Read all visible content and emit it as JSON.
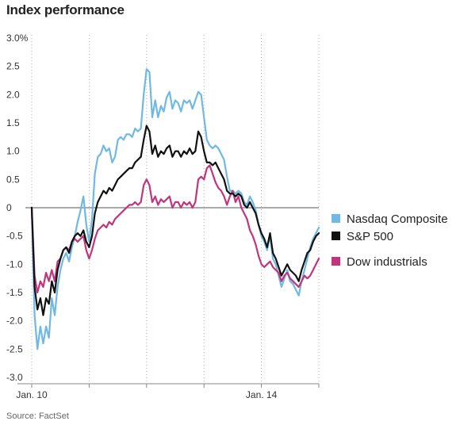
{
  "title": "Index performance",
  "source": "Source: FactSet",
  "chart_data": {
    "type": "line",
    "title": "Index performance",
    "ylim": [
      -3.0,
      3.0
    ],
    "yticks": [
      3.0,
      2.5,
      2.0,
      1.5,
      1.0,
      0.5,
      0,
      -0.5,
      -1.0,
      -1.5,
      -2.0,
      -2.5,
      -3.0
    ],
    "ytick_labels": [
      "3.0%",
      "2.5",
      "2.0",
      "1.5",
      "1.0",
      "0.5",
      "0",
      "-0.5",
      "-1.0",
      "-1.5",
      "-2.0",
      "-2.5",
      "-3.0"
    ],
    "xlim": [
      0,
      100
    ],
    "xticks": [
      0,
      20,
      40,
      60,
      80,
      100
    ],
    "xtick_labels": [
      {
        "x": 0,
        "label": "Jan. 10"
      },
      {
        "x": 80,
        "label": "Jan. 14"
      }
    ],
    "grid": "vertical dotted",
    "legend_position": "right",
    "series": [
      {
        "name": "Nasdaq Composite",
        "color": "#6fb9e3",
        "x": [
          0,
          1,
          2,
          3,
          4,
          5,
          6,
          7,
          8,
          9,
          10,
          11,
          12,
          13,
          14,
          15,
          16,
          17,
          18,
          19,
          20,
          21,
          22,
          23,
          24,
          25,
          26,
          27,
          28,
          29,
          30,
          31,
          32,
          33,
          34,
          35,
          36,
          37,
          38,
          39,
          40,
          41,
          42,
          43,
          44,
          45,
          46,
          47,
          48,
          49,
          50,
          51,
          52,
          53,
          54,
          55,
          56,
          57,
          58,
          59,
          60,
          61,
          62,
          63,
          64,
          65,
          66,
          67,
          68,
          69,
          70,
          71,
          72,
          73,
          74,
          75,
          76,
          77,
          78,
          79,
          80,
          81,
          82,
          83,
          84,
          85,
          86,
          87,
          88,
          89,
          90,
          91,
          92,
          93,
          94,
          95,
          96,
          97,
          98,
          99,
          100
        ],
        "y": [
          0,
          -1.9,
          -2.5,
          -2.1,
          -2.4,
          -2.1,
          -2.3,
          -1.6,
          -1.9,
          -1.4,
          -1.1,
          -0.9,
          -0.8,
          -0.95,
          -0.7,
          -0.5,
          -0.25,
          -0.05,
          0.2,
          -0.3,
          -0.6,
          -0.2,
          0.6,
          0.9,
          0.95,
          1.1,
          1.0,
          1.05,
          0.8,
          0.9,
          1.2,
          1.25,
          1.2,
          1.3,
          1.3,
          1.25,
          1.4,
          1.35,
          1.4,
          2.0,
          2.45,
          2.4,
          1.6,
          1.9,
          1.6,
          1.8,
          1.7,
          1.95,
          2.05,
          1.75,
          1.9,
          1.85,
          1.7,
          1.9,
          1.85,
          1.9,
          1.75,
          1.9,
          2.05,
          2.0,
          1.6,
          1.2,
          1.1,
          1.05,
          1.1,
          1.05,
          0.95,
          0.85,
          0.55,
          0.3,
          0.3,
          0.25,
          0.3,
          0.25,
          0.1,
          0.05,
          0.2,
          0.1,
          -0.05,
          -0.3,
          -0.5,
          -0.6,
          -0.75,
          -0.5,
          -0.9,
          -1.0,
          -1.2,
          -1.4,
          -1.25,
          -1.1,
          -1.3,
          -1.35,
          -1.45,
          -1.55,
          -1.3,
          -1.1,
          -0.9,
          -0.7,
          -0.55,
          -0.45,
          -0.35
        ]
      },
      {
        "name": "S&P 500",
        "color": "#111111",
        "x": [
          0,
          1,
          2,
          3,
          4,
          5,
          6,
          7,
          8,
          9,
          10,
          11,
          12,
          13,
          14,
          15,
          16,
          17,
          18,
          19,
          20,
          21,
          22,
          23,
          24,
          25,
          26,
          27,
          28,
          29,
          30,
          31,
          32,
          33,
          34,
          35,
          36,
          37,
          38,
          39,
          40,
          41,
          42,
          43,
          44,
          45,
          46,
          47,
          48,
          49,
          50,
          51,
          52,
          53,
          54,
          55,
          56,
          57,
          58,
          59,
          60,
          61,
          62,
          63,
          64,
          65,
          66,
          67,
          68,
          69,
          70,
          71,
          72,
          73,
          74,
          75,
          76,
          77,
          78,
          79,
          80,
          81,
          82,
          83,
          84,
          85,
          86,
          87,
          88,
          89,
          90,
          91,
          92,
          93,
          94,
          95,
          96,
          97,
          98,
          99,
          100
        ],
        "y": [
          0,
          -1.4,
          -1.8,
          -1.6,
          -1.9,
          -1.6,
          -1.7,
          -1.3,
          -1.5,
          -1.1,
          -0.9,
          -0.75,
          -0.7,
          -0.8,
          -0.6,
          -0.5,
          -0.45,
          -0.5,
          -0.4,
          -0.6,
          -0.7,
          -0.5,
          -0.1,
          0.1,
          0.2,
          0.3,
          0.25,
          0.35,
          0.3,
          0.4,
          0.5,
          0.55,
          0.6,
          0.65,
          0.7,
          0.7,
          0.8,
          0.85,
          0.9,
          1.2,
          1.45,
          1.35,
          0.95,
          1.1,
          0.9,
          1.0,
          0.95,
          1.05,
          1.1,
          0.9,
          1.0,
          1.0,
          0.9,
          1.0,
          0.95,
          1.05,
          0.95,
          1.0,
          1.35,
          1.25,
          1.0,
          0.8,
          0.8,
          0.75,
          0.8,
          0.7,
          0.6,
          0.5,
          0.3,
          0.25,
          0.25,
          0.2,
          0.25,
          0.2,
          0.05,
          0.0,
          0.1,
          0.0,
          -0.1,
          -0.3,
          -0.45,
          -0.55,
          -0.7,
          -0.45,
          -0.8,
          -0.9,
          -1.05,
          -1.2,
          -1.1,
          -1.0,
          -1.1,
          -1.15,
          -1.2,
          -1.3,
          -1.1,
          -0.95,
          -0.8,
          -0.75,
          -0.6,
          -0.5,
          -0.45
        ]
      },
      {
        "name": "Dow industrials",
        "color": "#c2347c",
        "x": [
          0,
          1,
          2,
          3,
          4,
          5,
          6,
          7,
          8,
          9,
          10,
          11,
          12,
          13,
          14,
          15,
          16,
          17,
          18,
          19,
          20,
          21,
          22,
          23,
          24,
          25,
          26,
          27,
          28,
          29,
          30,
          31,
          32,
          33,
          34,
          35,
          36,
          37,
          38,
          39,
          40,
          41,
          42,
          43,
          44,
          45,
          46,
          47,
          48,
          49,
          50,
          51,
          52,
          53,
          54,
          55,
          56,
          57,
          58,
          59,
          60,
          61,
          62,
          63,
          64,
          65,
          66,
          67,
          68,
          69,
          70,
          71,
          72,
          73,
          74,
          75,
          76,
          77,
          78,
          79,
          80,
          81,
          82,
          83,
          84,
          85,
          86,
          87,
          88,
          89,
          90,
          91,
          92,
          93,
          94,
          95,
          96,
          97,
          98,
          99,
          100
        ],
        "y": [
          0,
          -1.2,
          -1.5,
          -1.3,
          -1.4,
          -1.15,
          -1.3,
          -1.1,
          -1.3,
          -0.95,
          -0.9,
          -0.75,
          -0.7,
          -0.75,
          -0.6,
          -0.55,
          -0.6,
          -0.55,
          -0.5,
          -0.75,
          -0.9,
          -0.75,
          -0.55,
          -0.4,
          -0.35,
          -0.3,
          -0.35,
          -0.25,
          -0.3,
          -0.2,
          -0.15,
          -0.1,
          -0.05,
          0.0,
          0.05,
          0.05,
          0.1,
          0.05,
          0.1,
          0.4,
          0.5,
          0.4,
          0.1,
          0.2,
          0.05,
          0.15,
          0.1,
          0.15,
          0.2,
          0.0,
          0.1,
          0.1,
          0.0,
          0.1,
          0.05,
          0.1,
          0.0,
          0.1,
          0.5,
          0.55,
          0.5,
          0.7,
          0.75,
          0.6,
          0.45,
          0.35,
          0.3,
          0.2,
          0.05,
          0.2,
          0.3,
          0.1,
          0.2,
          0.0,
          -0.1,
          -0.2,
          -0.4,
          -0.5,
          -0.65,
          -0.85,
          -1.0,
          -1.05,
          -1.0,
          -0.95,
          -1.05,
          -1.1,
          -1.15,
          -1.3,
          -1.2,
          -1.15,
          -1.25,
          -1.3,
          -1.35,
          -1.4,
          -1.3,
          -1.2,
          -1.25,
          -1.2,
          -1.1,
          -1.0,
          -0.9
        ]
      }
    ]
  }
}
